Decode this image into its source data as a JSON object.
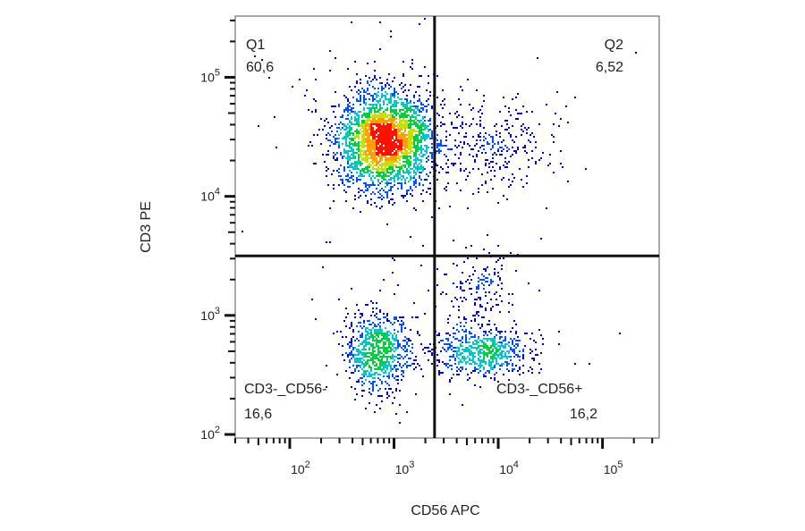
{
  "chart_data": {
    "type": "scatter",
    "subtype": "flow-cytometry-density-dot-plot",
    "xlabel": "CD56 APC",
    "ylabel": "CD3 PE",
    "x_scale": "log",
    "y_scale": "log",
    "xlim": [
      30,
      350000
    ],
    "ylim": [
      100,
      350000
    ],
    "x_ticks": [
      {
        "exp": "2",
        "value": 100
      },
      {
        "exp": "3",
        "value": 1000
      },
      {
        "exp": "4",
        "value": 10000
      },
      {
        "exp": "5",
        "value": 100000
      }
    ],
    "y_ticks": [
      {
        "exp": "2",
        "value": 100
      },
      {
        "exp": "3",
        "value": 1000
      },
      {
        "exp": "4",
        "value": 10000
      },
      {
        "exp": "5",
        "value": 100000
      }
    ],
    "tick_base": "10",
    "gates": {
      "x_threshold": 2450,
      "y_threshold": 3160
    },
    "quadrants": [
      {
        "name": "Q1",
        "percent": "60,6"
      },
      {
        "name": "Q2",
        "percent": "6,52"
      },
      {
        "name": "CD3-_CD56+",
        "percent": "16,2"
      },
      {
        "name": "CD3-_CD56-",
        "percent": "16,6"
      }
    ],
    "populations": [
      {
        "center": [
          800,
          30000
        ],
        "log_sd": [
          0.22,
          0.2
        ],
        "events": 3000
      },
      {
        "center": [
          8000,
          28000
        ],
        "log_sd": [
          0.33,
          0.2
        ],
        "events": 330
      },
      {
        "center": [
          700,
          500
        ],
        "log_sd": [
          0.15,
          0.17
        ],
        "events": 820
      },
      {
        "center": [
          7000,
          500
        ],
        "log_sd": [
          0.24,
          0.1
        ],
        "events": 650
      },
      {
        "center": [
          6000,
          1600
        ],
        "log_sd": [
          0.18,
          0.15
        ],
        "events": 170
      }
    ],
    "density_colors": [
      "#0000c8",
      "#0050ff",
      "#00c8c8",
      "#00d040",
      "#c8e000",
      "#ffa000",
      "#ff1000"
    ]
  }
}
